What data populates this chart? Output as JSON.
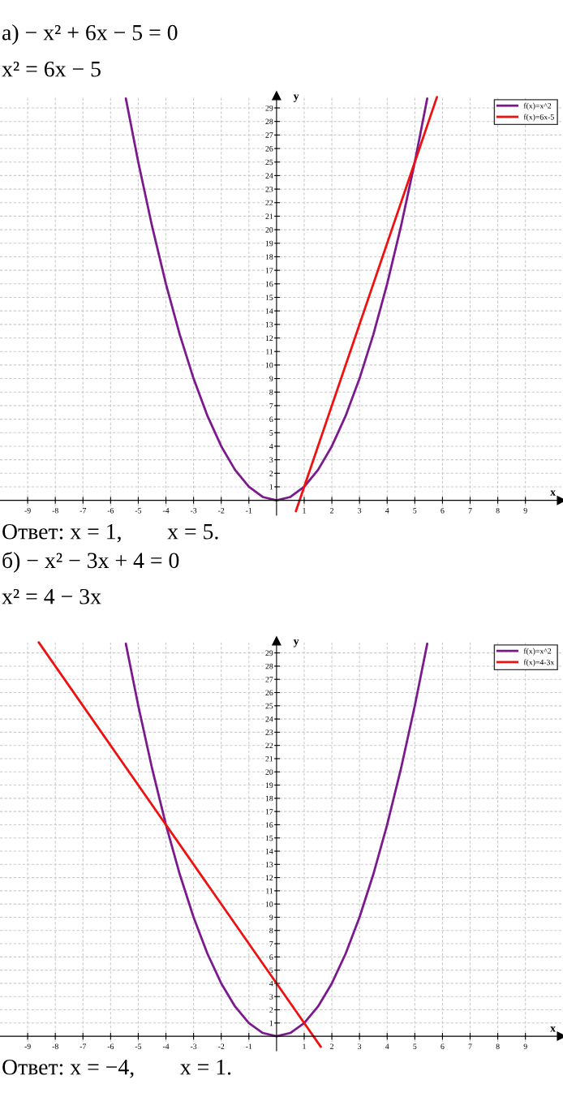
{
  "chart_data": [
    {
      "type": "line",
      "title": "а) − x² + 6x − 5 = 0",
      "subtitle": "x² = 6x − 5",
      "xlabel": "x",
      "ylabel": "y",
      "series": [
        {
          "name": "f(x)=x^2",
          "color": "#7b1a8c",
          "x": [
            -5.45,
            -5,
            -4.5,
            -4,
            -3.5,
            -3,
            -2.5,
            -2,
            -1.5,
            -1,
            -0.5,
            0,
            0.5,
            1,
            1.5,
            2,
            2.5,
            3,
            3.5,
            4,
            4.5,
            5,
            5.45
          ],
          "values": [
            29.7,
            25,
            20.25,
            16,
            12.25,
            9,
            6.25,
            4,
            2.25,
            1,
            0.25,
            0,
            0.25,
            1,
            2.25,
            4,
            6.25,
            9,
            12.25,
            16,
            20.25,
            25,
            29.7
          ]
        },
        {
          "name": "f(x)=6x-5",
          "color": "#ee1111",
          "x": [
            0.7,
            1,
            5,
            5.8
          ],
          "values": [
            -0.8,
            1,
            25,
            29.8
          ]
        }
      ],
      "xlim": [
        -10,
        10.3
      ],
      "ylim": [
        -1.1,
        29.9
      ],
      "xticks": [
        -9,
        -8,
        -7,
        -6,
        -5,
        -4,
        -3,
        -2,
        -1,
        1,
        2,
        3,
        4,
        5,
        6,
        7,
        8,
        9
      ],
      "yticks": [
        1,
        2,
        3,
        4,
        5,
        6,
        7,
        8,
        9,
        10,
        11,
        12,
        13,
        14,
        15,
        16,
        17,
        18,
        19,
        20,
        21,
        22,
        23,
        24,
        25,
        26,
        27,
        28,
        29
      ],
      "grid": true,
      "legend": "top right",
      "annotations": [
        "Ответ: x = 1,        x = 5."
      ]
    },
    {
      "type": "line",
      "title": "б) − x² − 3x + 4 = 0",
      "subtitle": "x² = 4 − 3x",
      "xlabel": "x",
      "ylabel": "y",
      "series": [
        {
          "name": "f(x)=x^2",
          "color": "#7b1a8c",
          "x": [
            -5.45,
            -5,
            -4.5,
            -4,
            -3.5,
            -3,
            -2.5,
            -2,
            -1.5,
            -1,
            -0.5,
            0,
            0.5,
            1,
            1.5,
            2,
            2.5,
            3,
            3.5,
            4,
            4.5,
            5,
            5.45
          ],
          "values": [
            29.7,
            25,
            20.25,
            16,
            12.25,
            9,
            6.25,
            4,
            2.25,
            1,
            0.25,
            0,
            0.25,
            1,
            2.25,
            4,
            6.25,
            9,
            12.25,
            16,
            20.25,
            25,
            29.7
          ]
        },
        {
          "name": "f(x)=4-3x",
          "color": "#ee1111",
          "x": [
            -8.6,
            -4,
            1,
            1.6
          ],
          "values": [
            29.8,
            16,
            1,
            -0.8
          ]
        }
      ],
      "xlim": [
        -10,
        10.3
      ],
      "ylim": [
        -1.1,
        29.9
      ],
      "xticks": [
        -9,
        -8,
        -7,
        -6,
        -5,
        -4,
        -3,
        -2,
        -1,
        1,
        2,
        3,
        4,
        5,
        6,
        7,
        8,
        9
      ],
      "yticks": [
        1,
        2,
        3,
        4,
        5,
        6,
        7,
        8,
        9,
        10,
        11,
        12,
        13,
        14,
        15,
        16,
        17,
        18,
        19,
        20,
        21,
        22,
        23,
        24,
        25,
        26,
        27,
        28,
        29
      ],
      "grid": true,
      "legend": "top right",
      "annotations": [
        "Ответ: x = −4,        x = 1."
      ]
    }
  ]
}
